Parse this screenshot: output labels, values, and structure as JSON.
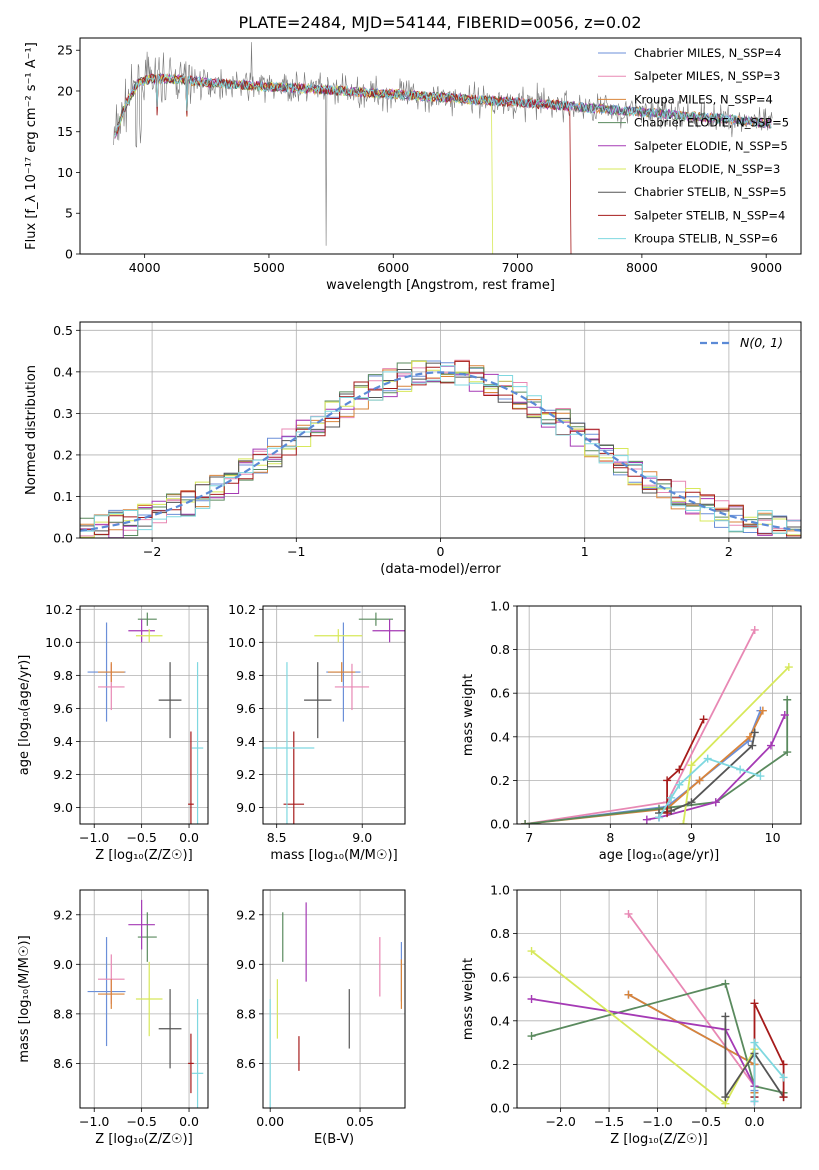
{
  "figure": {
    "title": "PLATE=2484, MJD=54144, FIBERID=0056, z=0.02"
  },
  "colors": {
    "chabrier_miles": "#6b8fd8",
    "salpeter_miles": "#e888b4",
    "kroupa_miles": "#d9843a",
    "chabrier_elodie": "#5a8a5e",
    "salpeter_elodie": "#a53ab5",
    "kroupa_elodie": "#d7e85a",
    "chabrier_stelib": "#555555",
    "salpeter_stelib": "#a61b1b",
    "kroupa_stelib": "#7fd8e0",
    "normal": "#5b8ad6",
    "grid": "#b0b0b0"
  },
  "chart_data": [
    {
      "id": "spectrum",
      "type": "line",
      "xlabel": "wavelength [Angstrom, rest frame]",
      "ylabel": "Flux [f_λ 10⁻¹⁷ erg cm⁻² s⁻¹ A⁻¹]",
      "xlim": [
        3480,
        9280
      ],
      "ylim": [
        0,
        26.5
      ],
      "xticks": [
        4000,
        5000,
        6000,
        7000,
        8000,
        9000
      ],
      "yticks": [
        0,
        5,
        10,
        15,
        20,
        25
      ],
      "grid": false,
      "legend_position": "top-right",
      "continuum": {
        "x": [
          3750,
          3850,
          3950,
          4050,
          4150,
          4300,
          4500,
          4700,
          5000,
          5300,
          5600,
          6000,
          6400,
          6800,
          7200,
          7600,
          8000,
          8400,
          8800,
          9000
        ],
        "y": [
          14,
          18.5,
          21.0,
          21.5,
          21.5,
          21.4,
          21.0,
          20.8,
          20.5,
          20.3,
          20.0,
          19.6,
          19.2,
          18.8,
          18.4,
          17.9,
          17.4,
          16.9,
          16.4,
          16.0
        ]
      },
      "series": [
        {
          "name": "Chabrier MILES, N_SSP=4",
          "color_key": "chabrier_miles"
        },
        {
          "name": "Salpeter MILES, N_SSP=3",
          "color_key": "salpeter_miles"
        },
        {
          "name": "Kroupa MILES, N_SSP=4",
          "color_key": "kroupa_miles"
        },
        {
          "name": "Chabrier ELODIE, N_SSP=5",
          "color_key": "chabrier_elodie"
        },
        {
          "name": "Salpeter ELODIE, N_SSP=5",
          "color_key": "salpeter_elodie"
        },
        {
          "name": "Kroupa ELODIE, N_SSP=3",
          "color_key": "kroupa_elodie"
        },
        {
          "name": "Chabrier STELIB, N_SSP=5",
          "color_key": "chabrier_stelib"
        },
        {
          "name": "Salpeter STELIB, N_SSP=4",
          "color_key": "salpeter_stelib"
        },
        {
          "name": "Kroupa STELIB, N_SSP=6",
          "color_key": "kroupa_stelib"
        }
      ]
    },
    {
      "id": "residuals",
      "type": "line",
      "xlabel": "(data-model)/error",
      "ylabel": "Normed distribution",
      "xlim": [
        -2.5,
        2.5
      ],
      "ylim": [
        0,
        0.52
      ],
      "xticks": [
        -2,
        -1,
        0,
        1,
        2
      ],
      "yticks": [
        0.0,
        0.1,
        0.2,
        0.3,
        0.4,
        0.5
      ],
      "grid": true,
      "legend_position": "top-right",
      "normal_label": "N(0, 1)",
      "bin_width": 0.1,
      "series_color_keys": [
        "chabrier_miles",
        "salpeter_miles",
        "kroupa_miles",
        "chabrier_elodie",
        "salpeter_elodie",
        "kroupa_elodie",
        "chabrier_stelib",
        "salpeter_stelib",
        "kroupa_stelib"
      ]
    },
    {
      "id": "z_age",
      "type": "scatter",
      "xlabel": "Z [log₁₀(Z/Z☉)]",
      "ylabel": "age  [log₁₀(age/yr)]",
      "xlim": [
        -1.15,
        0.2
      ],
      "ylim": [
        8.9,
        10.22
      ],
      "xticks": [
        -1.0,
        -0.5,
        0.0
      ],
      "yticks": [
        9.0,
        9.2,
        9.4,
        9.6,
        9.8,
        10.0,
        10.2
      ],
      "grid": true,
      "points": [
        {
          "color_key": "chabrier_miles",
          "x": -0.87,
          "xerr": 0.2,
          "y": 9.82,
          "yerr": 0.3
        },
        {
          "color_key": "salpeter_miles",
          "x": -0.82,
          "xerr": 0.14,
          "y": 9.73,
          "yerr": 0.14
        },
        {
          "color_key": "kroupa_miles",
          "x": -0.82,
          "xerr": 0.14,
          "y": 9.82,
          "yerr": 0.06
        },
        {
          "color_key": "chabrier_elodie",
          "x": -0.44,
          "xerr": 0.1,
          "y": 10.14,
          "yerr": 0.04
        },
        {
          "color_key": "salpeter_elodie",
          "x": -0.5,
          "xerr": 0.14,
          "y": 10.07,
          "yerr": 0.07
        },
        {
          "color_key": "kroupa_elodie",
          "x": -0.42,
          "xerr": 0.14,
          "y": 10.04,
          "yerr": 0.04
        },
        {
          "color_key": "chabrier_stelib",
          "x": -0.2,
          "xerr": 0.12,
          "y": 9.65,
          "yerr": 0.23
        },
        {
          "color_key": "salpeter_stelib",
          "x": 0.02,
          "xerr": 0.03,
          "y": 9.02,
          "yerr": 0.44
        },
        {
          "color_key": "kroupa_stelib",
          "x": 0.09,
          "xerr": 0.06,
          "y": 9.36,
          "yerr": 0.52
        }
      ]
    },
    {
      "id": "mass_age",
      "type": "scatter",
      "xlabel": "mass [log₁₀(M/M☉)]",
      "ylabel": "",
      "xlim": [
        8.42,
        9.25
      ],
      "ylim": [
        8.9,
        10.22
      ],
      "xticks": [
        8.5,
        9.0
      ],
      "yticks": [
        9.0,
        9.2,
        9.4,
        9.6,
        9.8,
        10.0,
        10.2
      ],
      "grid": true,
      "points": [
        {
          "color_key": "chabrier_miles",
          "x": 8.89,
          "xerr": 0.1,
          "y": 9.82,
          "yerr": 0.3
        },
        {
          "color_key": "salpeter_miles",
          "x": 8.94,
          "xerr": 0.1,
          "y": 9.73,
          "yerr": 0.14
        },
        {
          "color_key": "kroupa_miles",
          "x": 8.88,
          "xerr": 0.08,
          "y": 9.82,
          "yerr": 0.06
        },
        {
          "color_key": "chabrier_elodie",
          "x": 9.08,
          "xerr": 0.1,
          "y": 10.14,
          "yerr": 0.04
        },
        {
          "color_key": "salpeter_elodie",
          "x": 9.16,
          "xerr": 0.1,
          "y": 10.07,
          "yerr": 0.07
        },
        {
          "color_key": "kroupa_elodie",
          "x": 8.86,
          "xerr": 0.14,
          "y": 10.04,
          "yerr": 0.04
        },
        {
          "color_key": "chabrier_stelib",
          "x": 8.74,
          "xerr": 0.08,
          "y": 9.65,
          "yerr": 0.23
        },
        {
          "color_key": "salpeter_stelib",
          "x": 8.6,
          "xerr": 0.06,
          "y": 9.02,
          "yerr": 0.44
        },
        {
          "color_key": "kroupa_stelib",
          "x": 8.56,
          "xerr": 0.16,
          "y": 9.36,
          "yerr": 0.52
        }
      ]
    },
    {
      "id": "age_weight",
      "type": "line",
      "xlabel": "age  [log₁₀(age/yr)]",
      "ylabel": "mass weight",
      "xlim": [
        6.85,
        10.35
      ],
      "ylim": [
        0,
        1
      ],
      "xticks": [
        7,
        8,
        9,
        10
      ],
      "yticks": [
        0.0,
        0.2,
        0.4,
        0.6,
        0.8,
        1.0
      ],
      "grid": true,
      "series": [
        {
          "color_key": "chabrier_miles",
          "x": [
            6.95,
            8.7,
            9.1,
            9.7,
            9.85
          ],
          "y": [
            0.0,
            0.08,
            0.2,
            0.38,
            0.52
          ]
        },
        {
          "color_key": "salpeter_miles",
          "x": [
            6.95,
            8.7,
            9.78
          ],
          "y": [
            0.0,
            0.1,
            0.89
          ]
        },
        {
          "color_key": "kroupa_miles",
          "x": [
            6.95,
            8.7,
            9.1,
            9.72,
            9.88
          ],
          "y": [
            0.0,
            0.07,
            0.2,
            0.4,
            0.52
          ]
        },
        {
          "color_key": "chabrier_elodie",
          "x": [
            6.95,
            8.6,
            9.3,
            10.18,
            10.18
          ],
          "y": [
            0.0,
            0.07,
            0.1,
            0.33,
            0.57
          ]
        },
        {
          "color_key": "salpeter_elodie",
          "x": [
            8.45,
            8.6,
            9.3,
            9.98,
            10.15
          ],
          "y": [
            0.02,
            0.03,
            0.1,
            0.36,
            0.5
          ]
        },
        {
          "color_key": "kroupa_elodie",
          "x": [
            8.9,
            9.0,
            10.2
          ],
          "y": [
            0.0,
            0.27,
            0.72
          ]
        },
        {
          "color_key": "chabrier_stelib",
          "x": [
            8.6,
            8.75,
            9.0,
            9.75,
            9.78
          ],
          "y": [
            0.05,
            0.06,
            0.1,
            0.36,
            0.42
          ]
        },
        {
          "color_key": "salpeter_stelib",
          "x": [
            8.7,
            8.7,
            8.85,
            9.15
          ],
          "y": [
            0.05,
            0.2,
            0.25,
            0.48
          ]
        },
        {
          "color_key": "kroupa_stelib",
          "x": [
            8.6,
            8.75,
            8.85,
            9.2,
            9.6,
            9.85
          ],
          "y": [
            0.03,
            0.12,
            0.18,
            0.3,
            0.25,
            0.22
          ]
        }
      ]
    },
    {
      "id": "z_mass",
      "type": "scatter",
      "xlabel": "Z [log₁₀(Z/Z☉)]",
      "ylabel": "mass [log₁₀(M/M☉)]",
      "xlim": [
        -1.15,
        0.2
      ],
      "ylim": [
        8.42,
        9.3
      ],
      "xticks": [
        -1.0,
        -0.5,
        0.0
      ],
      "yticks": [
        8.6,
        8.8,
        9.0,
        9.2
      ],
      "grid": true,
      "points": [
        {
          "color_key": "chabrier_miles",
          "x": -0.87,
          "xerr": 0.2,
          "y": 8.89,
          "yerr": 0.22
        },
        {
          "color_key": "salpeter_miles",
          "x": -0.82,
          "xerr": 0.14,
          "y": 8.94,
          "yerr": 0.1
        },
        {
          "color_key": "kroupa_miles",
          "x": -0.82,
          "xerr": 0.14,
          "y": 8.88,
          "yerr": 0.06
        },
        {
          "color_key": "chabrier_elodie",
          "x": -0.44,
          "xerr": 0.1,
          "y": 9.11,
          "yerr": 0.1
        },
        {
          "color_key": "salpeter_elodie",
          "x": -0.5,
          "xerr": 0.14,
          "y": 9.16,
          "yerr": 0.1
        },
        {
          "color_key": "kroupa_elodie",
          "x": -0.42,
          "xerr": 0.14,
          "y": 8.86,
          "yerr": 0.15
        },
        {
          "color_key": "chabrier_stelib",
          "x": -0.2,
          "xerr": 0.12,
          "y": 8.74,
          "yerr": 0.16
        },
        {
          "color_key": "salpeter_stelib",
          "x": 0.02,
          "xerr": 0.03,
          "y": 8.6,
          "yerr": 0.12
        },
        {
          "color_key": "kroupa_stelib",
          "x": 0.09,
          "xerr": 0.06,
          "y": 8.56,
          "yerr": 0.3
        }
      ]
    },
    {
      "id": "ebv_mass",
      "type": "scatter",
      "xlabel": "E(B-V)",
      "ylabel": "",
      "xlim": [
        -0.004,
        0.075
      ],
      "ylim": [
        8.42,
        9.3
      ],
      "xticks": [
        0.0,
        0.05
      ],
      "yticks": [
        8.6,
        8.8,
        9.0,
        9.2
      ],
      "grid": true,
      "points": [
        {
          "color_key": "chabrier_miles",
          "x": 0.073,
          "xerr": 0,
          "y": 8.97,
          "yerr": 0.12
        },
        {
          "color_key": "salpeter_miles",
          "x": 0.061,
          "xerr": 0,
          "y": 8.99,
          "yerr": 0.12
        },
        {
          "color_key": "kroupa_miles",
          "x": 0.073,
          "xerr": 0,
          "y": 8.92,
          "yerr": 0.1
        },
        {
          "color_key": "chabrier_elodie",
          "x": 0.007,
          "xerr": 0,
          "y": 9.11,
          "yerr": 0.1
        },
        {
          "color_key": "salpeter_elodie",
          "x": 0.02,
          "xerr": 0,
          "y": 9.09,
          "yerr": 0.16
        },
        {
          "color_key": "kroupa_elodie",
          "x": 0.004,
          "xerr": 0,
          "y": 8.82,
          "yerr": 0.12
        },
        {
          "color_key": "chabrier_stelib",
          "x": 0.044,
          "xerr": 0,
          "y": 8.78,
          "yerr": 0.12
        },
        {
          "color_key": "salpeter_stelib",
          "x": 0.016,
          "xerr": 0,
          "y": 8.64,
          "yerr": 0.07
        },
        {
          "color_key": "kroupa_stelib",
          "x": 0.0,
          "xerr": 0,
          "y": 8.56,
          "yerr": 0.3
        }
      ]
    },
    {
      "id": "z_weight",
      "type": "line",
      "xlabel": "Z [log₁₀(Z/Z☉)]",
      "ylabel": "mass weight",
      "xlim": [
        -2.45,
        0.48
      ],
      "ylim": [
        0,
        1
      ],
      "xticks": [
        -2.0,
        -1.5,
        -1.0,
        -0.5,
        0.0
      ],
      "yticks": [
        0.0,
        0.2,
        0.4,
        0.6,
        0.8,
        1.0
      ],
      "grid": true,
      "series": [
        {
          "color_key": "chabrier_miles",
          "x": [
            -1.3,
            0.0,
            0.0,
            0.0
          ],
          "y": [
            0.52,
            0.2,
            0.08,
            0.05
          ]
        },
        {
          "color_key": "salpeter_miles",
          "x": [
            -1.3,
            0.0
          ],
          "y": [
            0.89,
            0.1
          ]
        },
        {
          "color_key": "kroupa_miles",
          "x": [
            -1.3,
            0.0,
            0.0
          ],
          "y": [
            0.52,
            0.2,
            0.07
          ]
        },
        {
          "color_key": "chabrier_elodie",
          "x": [
            -2.3,
            -0.3,
            0.0,
            0.3
          ],
          "y": [
            0.33,
            0.57,
            0.1,
            0.07
          ]
        },
        {
          "color_key": "salpeter_elodie",
          "x": [
            -2.3,
            -0.3,
            0.0,
            0.0
          ],
          "y": [
            0.5,
            0.36,
            0.1,
            0.03
          ]
        },
        {
          "color_key": "kroupa_elodie",
          "x": [
            -2.3,
            -0.3,
            0.0
          ],
          "y": [
            0.72,
            0.02,
            0.27
          ]
        },
        {
          "color_key": "chabrier_stelib",
          "x": [
            -0.3,
            -0.3,
            0.0,
            0.3
          ],
          "y": [
            0.42,
            0.05,
            0.25,
            0.05
          ]
        },
        {
          "color_key": "salpeter_stelib",
          "x": [
            0.0,
            0.0,
            0.3,
            0.3
          ],
          "y": [
            0.05,
            0.48,
            0.2,
            0.05
          ]
        },
        {
          "color_key": "kroupa_stelib",
          "x": [
            0.0,
            0.0,
            0.3
          ],
          "y": [
            0.03,
            0.3,
            0.14
          ]
        }
      ]
    }
  ]
}
